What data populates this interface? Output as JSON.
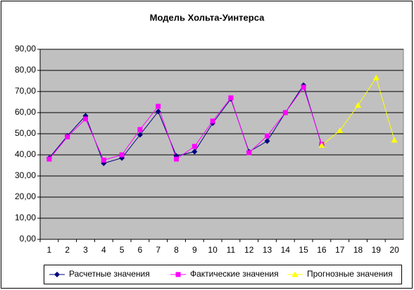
{
  "chart_data": {
    "type": "line",
    "title": "Модель Хольта-Уинтерса",
    "categories": [
      1,
      2,
      3,
      4,
      5,
      6,
      7,
      8,
      9,
      10,
      11,
      12,
      13,
      14,
      15,
      16,
      17,
      18,
      19,
      20
    ],
    "series": [
      {
        "name": "Расчетные значения",
        "color": "#000080",
        "marker": "diamond",
        "values": [
          38.5,
          49,
          58.5,
          36,
          38.5,
          49.5,
          60.5,
          39.5,
          41.5,
          55,
          66.5,
          41.5,
          46.5,
          60,
          73,
          44.5,
          null,
          null,
          null,
          null
        ]
      },
      {
        "name": "Фактические значения",
        "color": "#ff00ff",
        "marker": "square",
        "values": [
          38,
          48.5,
          57,
          37.5,
          40,
          52,
          63,
          38,
          44,
          56,
          67,
          41,
          49,
          60,
          72,
          45,
          null,
          null,
          null,
          null
        ]
      },
      {
        "name": "Прогнозные значения",
        "color": "#ffff00",
        "marker": "triangle",
        "values": [
          null,
          null,
          null,
          null,
          null,
          null,
          null,
          null,
          null,
          null,
          null,
          null,
          null,
          null,
          null,
          44.5,
          51.5,
          63.5,
          76.5,
          47
        ]
      }
    ],
    "ylim": [
      0,
      90
    ],
    "yticks": [
      {
        "value": 0,
        "label": "0,00"
      },
      {
        "value": 10,
        "label": "10,00"
      },
      {
        "value": 20,
        "label": "20,00"
      },
      {
        "value": 30,
        "label": "30,00"
      },
      {
        "value": 40,
        "label": "40,00"
      },
      {
        "value": 50,
        "label": "50,00"
      },
      {
        "value": 60,
        "label": "60,00"
      },
      {
        "value": 70,
        "label": "70,00"
      },
      {
        "value": 80,
        "label": "80,00"
      },
      {
        "value": 90,
        "label": "90,00"
      }
    ],
    "grid": true,
    "plot_background": "#c0c0c0",
    "legend": "bottom"
  }
}
